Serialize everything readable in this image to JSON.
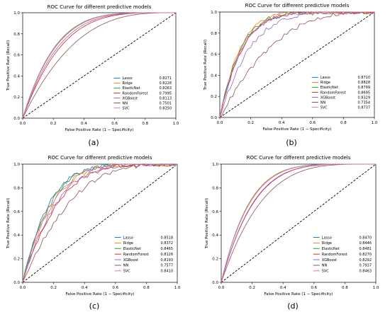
{
  "figure": {
    "title": "",
    "colors": {
      "Lasso": "#1f77b4",
      "Ridge": "#ff7f0e",
      "ElasticNet": "#2ca02c",
      "RandomForest": "#d62728",
      "XGBoost": "#9467bd",
      "NN": "#8c564b",
      "SVC": "#e377c2",
      "diagonal": "#000000"
    }
  },
  "chart_data": [
    {
      "type": "line",
      "panel_label": "(a)",
      "title": "ROC Curve for different predictive models",
      "xlabel": "False Positive Rate (1 − Specificity)",
      "ylabel": "True Positive Rate (Recall)",
      "xlim": [
        0,
        1
      ],
      "ylim": [
        0,
        1
      ],
      "xticks": [
        "0.0",
        "0.2",
        "0.4",
        "0.6",
        "0.8",
        "1.0"
      ],
      "yticks": [
        "0.0",
        "0.2",
        "0.4",
        "0.6",
        "0.8",
        "1.0"
      ],
      "grid": false,
      "legend_position": "lower-right",
      "series": [
        {
          "name": "Lasso",
          "auc": "0.8271"
        },
        {
          "name": "Ridge",
          "auc": "0.8228"
        },
        {
          "name": "ElasticNet",
          "auc": "0.8263"
        },
        {
          "name": "RandomForest",
          "auc": "0.7995"
        },
        {
          "name": "XGBoost",
          "auc": "0.8113"
        },
        {
          "name": "NN",
          "auc": "0.7501"
        },
        {
          "name": "SVC",
          "auc": "0.8250"
        }
      ]
    },
    {
      "type": "line",
      "panel_label": "(b)",
      "title": "ROC Curve for different predictive models",
      "xlabel": "False Positive Rate (1 − Specificity)",
      "ylabel": "True Positive Rate (Recall)",
      "xlim": [
        0,
        1
      ],
      "ylim": [
        0,
        1
      ],
      "xticks": [
        "0.0",
        "0.2",
        "0.4",
        "0.6",
        "0.8",
        "1.0"
      ],
      "yticks": [
        "0.0",
        "0.2",
        "0.4",
        "0.6",
        "0.8",
        "1.0"
      ],
      "grid": false,
      "legend_position": "lower-right",
      "series": [
        {
          "name": "Lasso",
          "auc": "0.8710"
        },
        {
          "name": "Ridge",
          "auc": "0.8828"
        },
        {
          "name": "ElasticNet",
          "auc": "0.8799"
        },
        {
          "name": "RandomForest",
          "auc": "0.8695"
        },
        {
          "name": "XGBoost",
          "auc": "0.8329"
        },
        {
          "name": "NN",
          "auc": "0.7354"
        },
        {
          "name": "SVC",
          "auc": "0.8737"
        }
      ]
    },
    {
      "type": "line",
      "panel_label": "(c)",
      "title": "ROC Curve for different predictive models",
      "xlabel": "False Positive Rate (1 − Specificity)",
      "ylabel": "True Positive Rate (Recall)",
      "xlim": [
        0,
        1
      ],
      "ylim": [
        0,
        1
      ],
      "xticks": [
        "0.0",
        "0.2",
        "0.4",
        "0.6",
        "0.8",
        "1.0"
      ],
      "yticks": [
        "0.0",
        "0.2",
        "0.4",
        "0.6",
        "0.8",
        "1.0"
      ],
      "grid": false,
      "legend_position": "lower-right",
      "series": [
        {
          "name": "Lasso",
          "auc": "0.8518"
        },
        {
          "name": "Ridge",
          "auc": "0.8372"
        },
        {
          "name": "ElasticNet",
          "auc": "0.8465"
        },
        {
          "name": "RandomForest",
          "auc": "0.8126"
        },
        {
          "name": "XGBoost",
          "auc": "0.8193"
        },
        {
          "name": "NN",
          "auc": "0.7577"
        },
        {
          "name": "SVC",
          "auc": "0.8410"
        }
      ]
    },
    {
      "type": "line",
      "panel_label": "(d)",
      "title": "ROC Curve for different predictive models",
      "xlabel": "False Positive Rate (1 − Specificity)",
      "ylabel": "True Positive Rate (Recall)",
      "xlim": [
        0,
        1
      ],
      "ylim": [
        0,
        1
      ],
      "xticks": [
        "0.0",
        "0.2",
        "0.4",
        "0.6",
        "0.8",
        "1.0"
      ],
      "yticks": [
        "0.0",
        "0.2",
        "0.4",
        "0.6",
        "0.8",
        "1.0"
      ],
      "grid": false,
      "legend_position": "lower-right",
      "series": [
        {
          "name": "Lasso",
          "auc": "0.8470"
        },
        {
          "name": "Ridge",
          "auc": "0.8446"
        },
        {
          "name": "ElasticNet",
          "auc": "0.8481"
        },
        {
          "name": "RandomForest",
          "auc": "0.8270"
        },
        {
          "name": "XGBoost",
          "auc": "0.8292"
        },
        {
          "name": "NN",
          "auc": "0.7937"
        },
        {
          "name": "SVC",
          "auc": "0.8463"
        }
      ]
    }
  ]
}
